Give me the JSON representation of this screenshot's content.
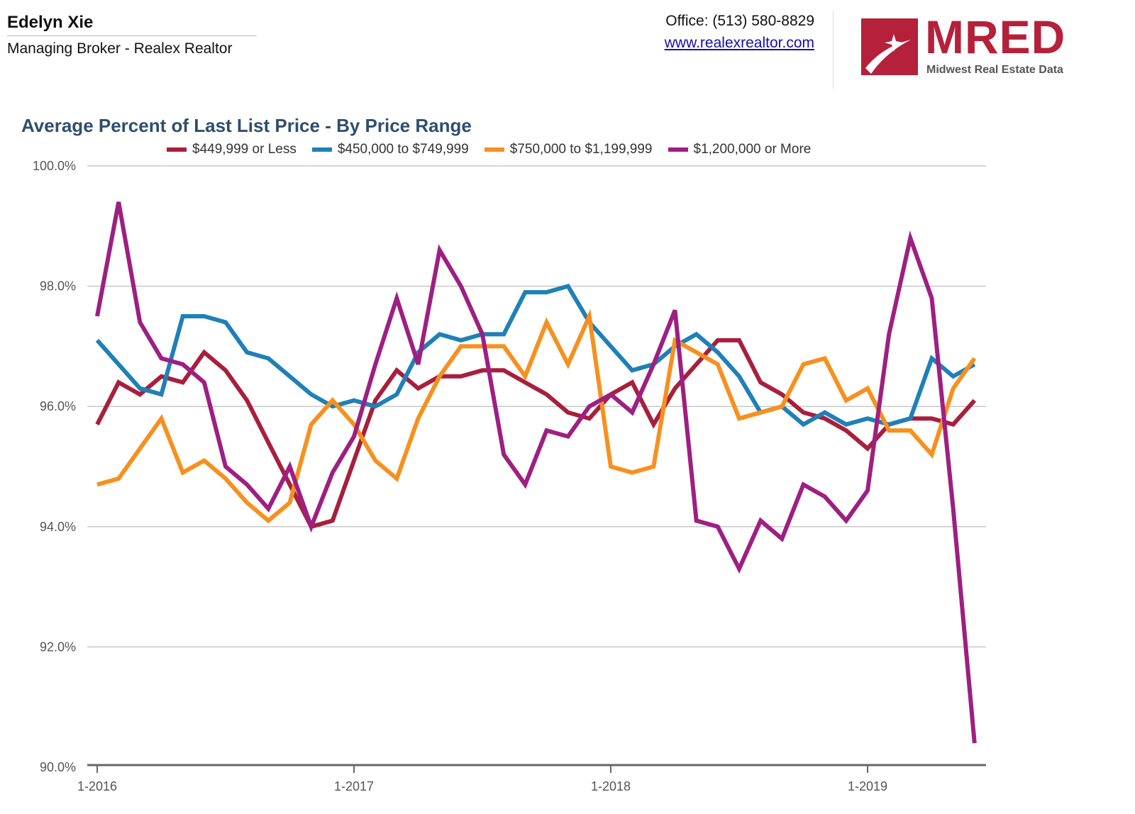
{
  "header": {
    "agent_name": "Edelyn Xie",
    "agent_role": "Managing Broker - Realex Realtor",
    "office": "Office: (513) 580-8829",
    "website": "www.realexrealtor.com",
    "logo_text": "MRED",
    "logo_subtext": "Midwest Real Estate Data",
    "brand_color": "#b5203a"
  },
  "chart_data": {
    "type": "line",
    "title": "Average Percent of Last List Price - By Price Range",
    "xlabel": "",
    "ylabel": "",
    "ylim": [
      90,
      100
    ],
    "yticks": [
      "90.0%",
      "92.0%",
      "94.0%",
      "96.0%",
      "98.0%",
      "100.0%"
    ],
    "xtick_labels": [
      "1-2016",
      "1-2017",
      "1-2018",
      "1-2019"
    ],
    "x_start": "1-2016",
    "x_end": "6-2019",
    "grid": true,
    "legend": "top",
    "series": [
      {
        "name": "$449,999 or Less",
        "color": "#a81f3c",
        "values": [
          95.7,
          96.4,
          96.2,
          96.5,
          96.4,
          96.9,
          96.6,
          96.1,
          95.4,
          94.7,
          94.0,
          94.1,
          95.1,
          96.1,
          96.6,
          96.3,
          96.5,
          96.5,
          96.6,
          96.6,
          96.4,
          96.2,
          95.9,
          95.8,
          96.2,
          96.4,
          95.7,
          96.3,
          96.7,
          97.1,
          97.1,
          96.4,
          96.2,
          95.9,
          95.8,
          95.6,
          95.3,
          95.7,
          95.8,
          95.8,
          95.7,
          96.1
        ]
      },
      {
        "name": "$450,000 to $749,999",
        "color": "#1f80b8",
        "values": [
          97.1,
          96.7,
          96.3,
          96.2,
          97.5,
          97.5,
          97.4,
          96.9,
          96.8,
          96.5,
          96.2,
          96.0,
          96.1,
          96.0,
          96.2,
          96.9,
          97.2,
          97.1,
          97.2,
          97.2,
          97.9,
          97.9,
          98.0,
          97.4,
          97.0,
          96.6,
          96.7,
          97.0,
          97.2,
          96.9,
          96.5,
          95.9,
          96.0,
          95.7,
          95.9,
          95.7,
          95.8,
          95.7,
          95.8,
          96.8,
          96.5,
          96.7
        ]
      },
      {
        "name": "$750,000 to $1,199,999",
        "color": "#f7901e",
        "values": [
          94.7,
          94.8,
          95.3,
          95.8,
          94.9,
          95.1,
          94.8,
          94.4,
          94.1,
          94.4,
          95.7,
          96.1,
          95.7,
          95.1,
          94.8,
          95.8,
          96.5,
          97.0,
          97.0,
          97.0,
          96.5,
          97.4,
          96.7,
          97.5,
          95.0,
          94.9,
          95.0,
          97.1,
          96.9,
          96.7,
          95.8,
          95.9,
          96.0,
          96.7,
          96.8,
          96.1,
          96.3,
          95.6,
          95.6,
          95.2,
          96.3,
          96.8
        ]
      },
      {
        "name": "$1,200,000 or More",
        "color": "#9e1f82",
        "values": [
          97.5,
          99.4,
          97.4,
          96.8,
          96.7,
          96.4,
          95.0,
          94.7,
          94.3,
          95.0,
          94.0,
          94.9,
          95.5,
          96.7,
          97.8,
          96.7,
          98.6,
          98.0,
          97.2,
          95.2,
          94.7,
          95.6,
          95.5,
          96.0,
          96.2,
          95.9,
          96.7,
          97.6,
          94.1,
          94.0,
          93.3,
          94.1,
          93.8,
          94.7,
          94.5,
          94.1,
          94.6,
          97.2,
          98.8,
          97.8,
          94.3,
          90.4
        ]
      }
    ]
  }
}
